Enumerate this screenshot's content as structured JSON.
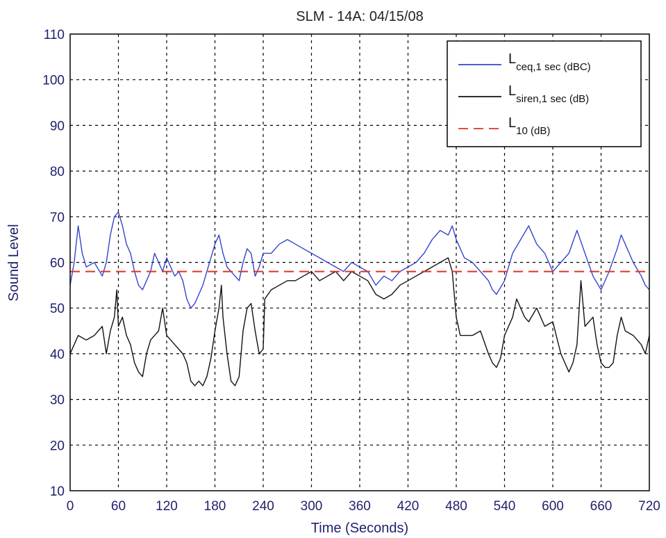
{
  "chart_data": {
    "type": "line",
    "title": "SLM - 14A: 04/15/08",
    "xlabel": "Time (Seconds)",
    "ylabel": "Sound Level",
    "xlim": [
      0,
      720
    ],
    "ylim": [
      10,
      110
    ],
    "xticks": [
      0,
      60,
      120,
      180,
      240,
      300,
      360,
      420,
      480,
      540,
      600,
      660,
      720
    ],
    "yticks": [
      10,
      20,
      30,
      40,
      50,
      60,
      70,
      80,
      90,
      100,
      110
    ],
    "grid": true,
    "legend_position": "top-right",
    "legend": [
      {
        "main": "L",
        "sub": "ceq,1 sec",
        "unit": " (dBC)",
        "color": "#3344cc",
        "style": "solid"
      },
      {
        "main": "L",
        "sub": "siren,1 sec",
        "unit": " (dB)",
        "color": "#111111",
        "style": "solid"
      },
      {
        "main": "L",
        "sub": "10",
        "unit": " (dB)",
        "color": "#dd3322",
        "style": "dashed"
      }
    ],
    "series": [
      {
        "color": "#3344cc",
        "style": "solid",
        "points": [
          [
            0,
            55
          ],
          [
            5,
            60
          ],
          [
            10,
            68
          ],
          [
            15,
            62
          ],
          [
            20,
            59
          ],
          [
            30,
            60
          ],
          [
            40,
            57
          ],
          [
            45,
            60
          ],
          [
            50,
            66
          ],
          [
            55,
            70
          ],
          [
            60,
            71
          ],
          [
            65,
            68
          ],
          [
            70,
            64
          ],
          [
            75,
            62
          ],
          [
            80,
            58
          ],
          [
            85,
            55
          ],
          [
            90,
            54
          ],
          [
            95,
            56
          ],
          [
            100,
            58
          ],
          [
            105,
            62
          ],
          [
            110,
            60
          ],
          [
            115,
            58
          ],
          [
            120,
            61
          ],
          [
            125,
            59
          ],
          [
            130,
            57
          ],
          [
            135,
            58
          ],
          [
            140,
            56
          ],
          [
            145,
            52
          ],
          [
            150,
            50
          ],
          [
            155,
            51
          ],
          [
            160,
            53
          ],
          [
            165,
            55
          ],
          [
            170,
            58
          ],
          [
            175,
            61
          ],
          [
            180,
            64
          ],
          [
            185,
            66
          ],
          [
            190,
            62
          ],
          [
            195,
            59
          ],
          [
            200,
            58
          ],
          [
            205,
            57
          ],
          [
            210,
            56
          ],
          [
            215,
            60
          ],
          [
            220,
            63
          ],
          [
            225,
            62
          ],
          [
            230,
            57
          ],
          [
            235,
            59
          ],
          [
            240,
            62
          ],
          [
            250,
            62
          ],
          [
            260,
            64
          ],
          [
            270,
            65
          ],
          [
            280,
            64
          ],
          [
            290,
            63
          ],
          [
            300,
            62
          ],
          [
            310,
            61
          ],
          [
            320,
            60
          ],
          [
            330,
            59
          ],
          [
            340,
            58
          ],
          [
            350,
            60
          ],
          [
            360,
            59
          ],
          [
            370,
            58
          ],
          [
            380,
            55
          ],
          [
            390,
            57
          ],
          [
            400,
            56
          ],
          [
            410,
            58
          ],
          [
            420,
            59
          ],
          [
            430,
            60
          ],
          [
            440,
            62
          ],
          [
            450,
            65
          ],
          [
            460,
            67
          ],
          [
            470,
            66
          ],
          [
            475,
            68
          ],
          [
            480,
            65
          ],
          [
            490,
            61
          ],
          [
            500,
            60
          ],
          [
            510,
            58
          ],
          [
            520,
            56
          ],
          [
            525,
            54
          ],
          [
            530,
            53
          ],
          [
            540,
            56
          ],
          [
            550,
            62
          ],
          [
            560,
            65
          ],
          [
            570,
            68
          ],
          [
            580,
            64
          ],
          [
            590,
            62
          ],
          [
            600,
            58
          ],
          [
            610,
            60
          ],
          [
            620,
            62
          ],
          [
            630,
            67
          ],
          [
            640,
            62
          ],
          [
            650,
            57
          ],
          [
            660,
            54
          ],
          [
            670,
            58
          ],
          [
            680,
            63
          ],
          [
            685,
            66
          ],
          [
            690,
            64
          ],
          [
            700,
            60
          ],
          [
            710,
            57
          ],
          [
            715,
            55
          ],
          [
            720,
            54
          ]
        ]
      },
      {
        "color": "#111111",
        "style": "solid",
        "points": [
          [
            0,
            40
          ],
          [
            5,
            42
          ],
          [
            10,
            44
          ],
          [
            20,
            43
          ],
          [
            30,
            44
          ],
          [
            40,
            46
          ],
          [
            45,
            40
          ],
          [
            50,
            45
          ],
          [
            55,
            48
          ],
          [
            58,
            54
          ],
          [
            60,
            46
          ],
          [
            65,
            48
          ],
          [
            70,
            44
          ],
          [
            75,
            42
          ],
          [
            80,
            38
          ],
          [
            85,
            36
          ],
          [
            90,
            35
          ],
          [
            95,
            40
          ],
          [
            100,
            43
          ],
          [
            105,
            44
          ],
          [
            110,
            45
          ],
          [
            115,
            50
          ],
          [
            120,
            44
          ],
          [
            125,
            43
          ],
          [
            130,
            42
          ],
          [
            140,
            40
          ],
          [
            145,
            38
          ],
          [
            150,
            34
          ],
          [
            155,
            33
          ],
          [
            160,
            34
          ],
          [
            165,
            33
          ],
          [
            170,
            35
          ],
          [
            175,
            39
          ],
          [
            180,
            45
          ],
          [
            185,
            50
          ],
          [
            188,
            55
          ],
          [
            190,
            48
          ],
          [
            195,
            40
          ],
          [
            200,
            34
          ],
          [
            205,
            33
          ],
          [
            210,
            35
          ],
          [
            215,
            45
          ],
          [
            220,
            50
          ],
          [
            225,
            51
          ],
          [
            230,
            45
          ],
          [
            235,
            40
          ],
          [
            240,
            41
          ],
          [
            242,
            52
          ],
          [
            250,
            54
          ],
          [
            260,
            55
          ],
          [
            270,
            56
          ],
          [
            280,
            56
          ],
          [
            290,
            57
          ],
          [
            300,
            58
          ],
          [
            310,
            56
          ],
          [
            320,
            57
          ],
          [
            330,
            58
          ],
          [
            340,
            56
          ],
          [
            350,
            58
          ],
          [
            360,
            57
          ],
          [
            370,
            56
          ],
          [
            380,
            53
          ],
          [
            390,
            52
          ],
          [
            400,
            53
          ],
          [
            410,
            55
          ],
          [
            420,
            56
          ],
          [
            430,
            57
          ],
          [
            440,
            58
          ],
          [
            450,
            59
          ],
          [
            460,
            60
          ],
          [
            470,
            61
          ],
          [
            475,
            58
          ],
          [
            480,
            48
          ],
          [
            485,
            44
          ],
          [
            490,
            44
          ],
          [
            500,
            44
          ],
          [
            510,
            45
          ],
          [
            520,
            40
          ],
          [
            525,
            38
          ],
          [
            530,
            37
          ],
          [
            535,
            39
          ],
          [
            540,
            44
          ],
          [
            550,
            48
          ],
          [
            555,
            52
          ],
          [
            560,
            50
          ],
          [
            565,
            48
          ],
          [
            570,
            47
          ],
          [
            580,
            50
          ],
          [
            590,
            46
          ],
          [
            600,
            47
          ],
          [
            610,
            40
          ],
          [
            615,
            38
          ],
          [
            620,
            36
          ],
          [
            625,
            38
          ],
          [
            630,
            42
          ],
          [
            635,
            56
          ],
          [
            640,
            46
          ],
          [
            650,
            48
          ],
          [
            655,
            42
          ],
          [
            660,
            38
          ],
          [
            665,
            37
          ],
          [
            670,
            37
          ],
          [
            675,
            38
          ],
          [
            680,
            44
          ],
          [
            685,
            48
          ],
          [
            690,
            45
          ],
          [
            700,
            44
          ],
          [
            710,
            42
          ],
          [
            715,
            40
          ],
          [
            720,
            44
          ]
        ]
      },
      {
        "color": "#dd3322",
        "style": "dashed",
        "points": [
          [
            0,
            58
          ],
          [
            720,
            58
          ]
        ]
      }
    ]
  }
}
